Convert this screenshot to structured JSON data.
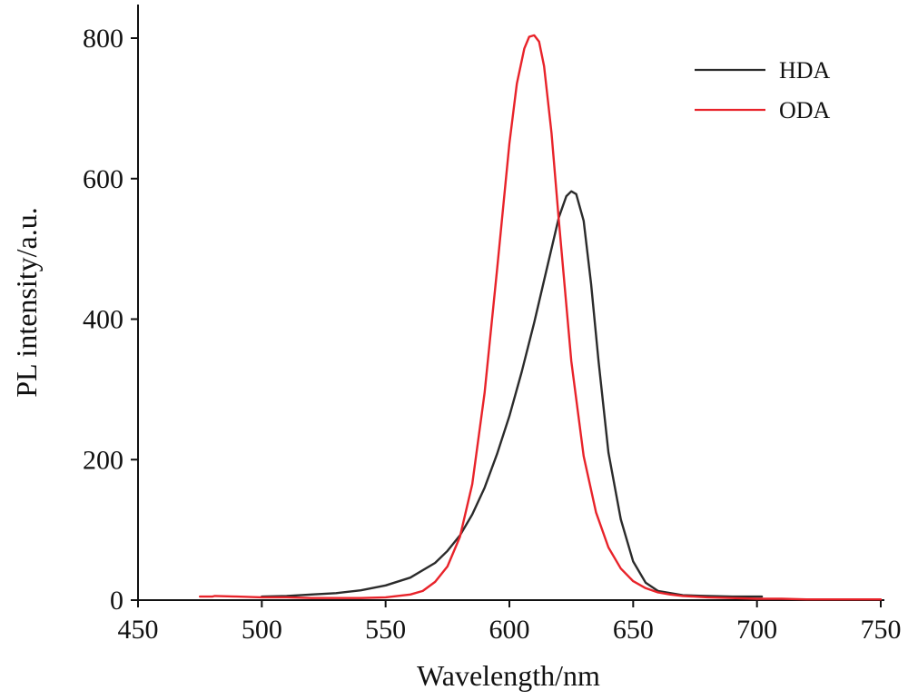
{
  "chart_data": {
    "type": "line",
    "title": "",
    "xlabel": "Wavelength/nm",
    "ylabel": "PL intensity/a.u.",
    "xlim": [
      450,
      752
    ],
    "ylim": [
      0,
      820
    ],
    "xticks": [
      450,
      500,
      550,
      600,
      650,
      700,
      750
    ],
    "xtick_labels": [
      "450",
      "500",
      "550",
      "600",
      "650",
      "700",
      "750"
    ],
    "yticks": [
      0,
      200,
      400,
      600,
      800
    ],
    "ytick_labels": [
      "0",
      "200",
      "400",
      "600",
      "800"
    ],
    "grid": false,
    "legend_position": "top-right",
    "series": [
      {
        "name": "HDA",
        "color": "#2b2b2b",
        "x": [
          500,
          510,
          520,
          530,
          540,
          550,
          560,
          570,
          575,
          580,
          585,
          590,
          595,
          600,
          605,
          610,
          615,
          620,
          623,
          625,
          627,
          630,
          633,
          636,
          640,
          645,
          650,
          655,
          660,
          670,
          680,
          690,
          702
        ],
        "y": [
          5,
          6,
          8,
          10,
          14,
          21,
          32,
          53,
          70,
          92,
          122,
          160,
          208,
          262,
          325,
          395,
          470,
          545,
          575,
          582,
          578,
          540,
          450,
          340,
          210,
          115,
          55,
          25,
          13,
          7,
          6,
          5,
          5
        ]
      },
      {
        "name": "ODA",
        "color": "#e8232a",
        "x": [
          475,
          480,
          481,
          490,
          500,
          510,
          520,
          530,
          540,
          550,
          560,
          565,
          570,
          575,
          580,
          585,
          590,
          595,
          600,
          603,
          606,
          608,
          610,
          612,
          614,
          617,
          620,
          625,
          630,
          635,
          640,
          645,
          650,
          655,
          660,
          665,
          670,
          680,
          690,
          700,
          710,
          720,
          730,
          740,
          750
        ],
        "y": [
          5,
          5,
          6,
          5,
          4,
          4,
          3,
          3,
          3,
          4,
          8,
          13,
          26,
          48,
          90,
          165,
          295,
          470,
          650,
          735,
          785,
          802,
          804,
          795,
          760,
          665,
          540,
          340,
          205,
          125,
          75,
          45,
          27,
          17,
          11,
          8,
          6,
          4,
          3,
          2,
          2,
          1,
          1,
          1,
          1
        ]
      }
    ]
  }
}
